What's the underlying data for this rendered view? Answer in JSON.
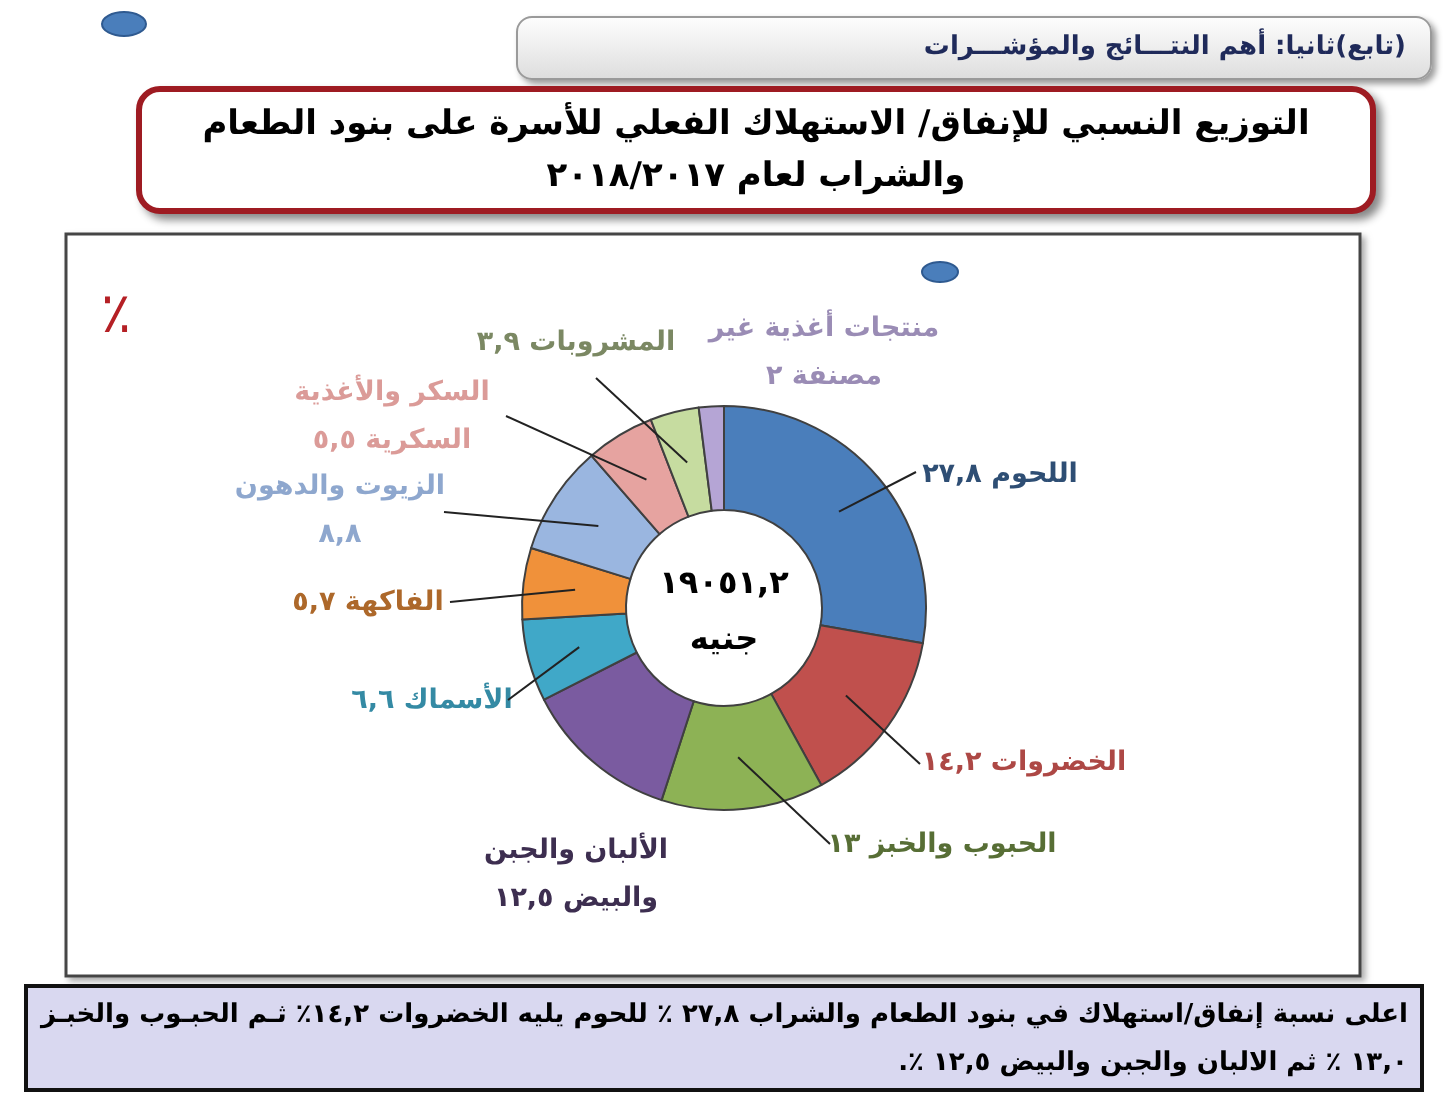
{
  "chart_data": {
    "type": "donut",
    "title": "التوزيع النسبي للإنفاق/ الاستهلاك الفعلي للأسرة على بنود الطعام والشراب لعام ٢٠١٨/٢٠١٧",
    "categories": [
      "اللحوم",
      "الخضروات",
      "الحبوب والخبز",
      "الألبان والجبن والبيض",
      "الأسماك",
      "الفاكهة",
      "الزيوت والدهون",
      "السكر والأغذية السكرية",
      "المشروبات",
      "منتجات أغذية غير مصنفة"
    ],
    "values": [
      27.8,
      14.2,
      13,
      12.5,
      6.6,
      5.7,
      8.8,
      5.5,
      3.9,
      2
    ],
    "value_labels": [
      "٢٧,٨",
      "١٤,٢",
      "١٣",
      "١٢,٥",
      "٦,٦",
      "٥,٧",
      "٨,٨",
      "٥,٥",
      "٣,٩",
      "٢"
    ],
    "colors": [
      "#4a7ebb",
      "#c0504d",
      "#8db255",
      "#7a5ba0",
      "#40a8c8",
      "#f0913a",
      "#9ab6e0",
      "#e6a3a0",
      "#c6dca0",
      "#b5a5d5"
    ],
    "annotations": [
      "(تابع)ثانيا: أهم النتـــائج والمؤشـــرات",
      "٪",
      "١٩٠٥١,٢ جنيه",
      "اعلى نسبة إنفاق/استهلاك في بنود الطعام والشراب ٢٧,٨ ٪ للحوم يليه الخضروات ١٤,٢٪ ثـم الحبـوب والخبـز ١٣,٠ ٪ ثم الالبان والجبن والبيض ١٢,٥ ٪."
    ]
  }
}
